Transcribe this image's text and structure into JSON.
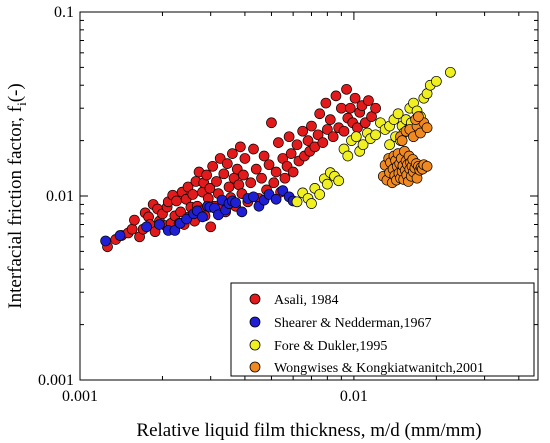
{
  "chart_data": {
    "type": "scatter",
    "xlabel": "Relative liquid film thickness, m/d (mm/mm)",
    "ylabel_main": "Interfacial friction factor, f",
    "ylabel_sub": "i",
    "ylabel_tail": "(-)",
    "x_scale": "log",
    "y_scale": "log",
    "xlim": [
      0.001,
      0.047
    ],
    "ylim": [
      0.001,
      0.1
    ],
    "x_ticks": [
      {
        "value": 0.001,
        "label": "0.001"
      },
      {
        "value": 0.01,
        "label": "0.01"
      }
    ],
    "y_ticks": [
      {
        "value": 0.001,
        "label": "0.001"
      },
      {
        "value": 0.01,
        "label": "0.01"
      },
      {
        "value": 0.1,
        "label": "0.1"
      }
    ],
    "grid": false,
    "legend_position": "bottom-right",
    "series": [
      {
        "name": "Asali, 1984",
        "color": "#e31a1c",
        "points": [
          [
            0.00126,
            0.0053
          ],
          [
            0.00135,
            0.0058
          ],
          [
            0.00142,
            0.0061
          ],
          [
            0.0015,
            0.0063
          ],
          [
            0.00155,
            0.0066
          ],
          [
            0.00158,
            0.0074
          ],
          [
            0.00165,
            0.006
          ],
          [
            0.0017,
            0.0066
          ],
          [
            0.00173,
            0.0081
          ],
          [
            0.00178,
            0.0077
          ],
          [
            0.0018,
            0.007
          ],
          [
            0.00185,
            0.009
          ],
          [
            0.00188,
            0.0064
          ],
          [
            0.00192,
            0.0085
          ],
          [
            0.00195,
            0.0073
          ],
          [
            0.002,
            0.008
          ],
          [
            0.00205,
            0.0069
          ],
          [
            0.00208,
            0.0087
          ],
          [
            0.0021,
            0.0093
          ],
          [
            0.00215,
            0.0071
          ],
          [
            0.00218,
            0.0101
          ],
          [
            0.00222,
            0.0078
          ],
          [
            0.00225,
            0.0094
          ],
          [
            0.0023,
            0.0071
          ],
          [
            0.00233,
            0.0082
          ],
          [
            0.00236,
            0.0105
          ],
          [
            0.0024,
            0.007
          ],
          [
            0.00244,
            0.0096
          ],
          [
            0.00248,
            0.0112
          ],
          [
            0.0025,
            0.0077
          ],
          [
            0.00254,
            0.0087
          ],
          [
            0.00258,
            0.0102
          ],
          [
            0.00262,
            0.0073
          ],
          [
            0.00265,
            0.012
          ],
          [
            0.00268,
            0.0088
          ],
          [
            0.00272,
            0.0135
          ],
          [
            0.00276,
            0.0083
          ],
          [
            0.0028,
            0.0105
          ],
          [
            0.00283,
            0.0118
          ],
          [
            0.00286,
            0.0078
          ],
          [
            0.0029,
            0.013
          ],
          [
            0.00294,
            0.0097
          ],
          [
            0.00298,
            0.011
          ],
          [
            0.003,
            0.0068
          ],
          [
            0.00305,
            0.0145
          ],
          [
            0.0031,
            0.0088
          ],
          [
            0.00315,
            0.012
          ],
          [
            0.0032,
            0.0103
          ],
          [
            0.00325,
            0.016
          ],
          [
            0.0033,
            0.009
          ],
          [
            0.00335,
            0.0132
          ],
          [
            0.0034,
            0.0082
          ],
          [
            0.00345,
            0.015
          ],
          [
            0.0035,
            0.0112
          ],
          [
            0.00355,
            0.0098
          ],
          [
            0.0036,
            0.017
          ],
          [
            0.00365,
            0.0125
          ],
          [
            0.0037,
            0.0088
          ],
          [
            0.00375,
            0.014
          ],
          [
            0.0038,
            0.0115
          ],
          [
            0.00385,
            0.0185
          ],
          [
            0.0039,
            0.0103
          ],
          [
            0.00395,
            0.013
          ],
          [
            0.004,
            0.016
          ],
          [
            0.0041,
            0.0093
          ],
          [
            0.0042,
            0.0118
          ],
          [
            0.0043,
            0.018
          ],
          [
            0.0044,
            0.014
          ],
          [
            0.0045,
            0.0097
          ],
          [
            0.0046,
            0.0125
          ],
          [
            0.0047,
            0.0165
          ],
          [
            0.0048,
            0.0108
          ],
          [
            0.0049,
            0.0148
          ],
          [
            0.005,
            0.025
          ],
          [
            0.0051,
            0.0118
          ],
          [
            0.0052,
            0.0135
          ],
          [
            0.0053,
            0.0195
          ],
          [
            0.0054,
            0.0105
          ],
          [
            0.0055,
            0.016
          ],
          [
            0.0056,
            0.0125
          ],
          [
            0.0057,
            0.0145
          ],
          [
            0.0058,
            0.021
          ],
          [
            0.0059,
            0.017
          ],
          [
            0.006,
            0.0135
          ],
          [
            0.0062,
            0.019
          ],
          [
            0.0063,
            0.0155
          ],
          [
            0.0065,
            0.0225
          ],
          [
            0.0066,
            0.0165
          ],
          [
            0.0068,
            0.02
          ],
          [
            0.0069,
            0.0175
          ],
          [
            0.007,
            0.024
          ],
          [
            0.0072,
            0.0185
          ],
          [
            0.0074,
            0.0215
          ],
          [
            0.0075,
            0.028
          ],
          [
            0.0077,
            0.0195
          ],
          [
            0.0079,
            0.032
          ],
          [
            0.008,
            0.023
          ],
          [
            0.0082,
            0.026
          ],
          [
            0.0084,
            0.021
          ],
          [
            0.0086,
            0.035
          ],
          [
            0.0088,
            0.0235
          ],
          [
            0.009,
            0.03
          ],
          [
            0.0092,
            0.0225
          ],
          [
            0.0094,
            0.038
          ],
          [
            0.0095,
            0.0265
          ],
          [
            0.0097,
            0.03
          ],
          [
            0.0099,
            0.025
          ],
          [
            0.0101,
            0.034
          ],
          [
            0.0103,
            0.0235
          ],
          [
            0.0105,
            0.0285
          ],
          [
            0.0107,
            0.031
          ],
          [
            0.011,
            0.025
          ],
          [
            0.0113,
            0.033
          ],
          [
            0.0116,
            0.027
          ],
          [
            0.012,
            0.03
          ]
        ]
      },
      {
        "name": "Shearer & Nedderman,1967",
        "color": "#1f1fd6",
        "points": [
          [
            0.00124,
            0.0057
          ],
          [
            0.0014,
            0.0061
          ],
          [
            0.00175,
            0.0068
          ],
          [
            0.00195,
            0.007
          ],
          [
            0.0021,
            0.0065
          ],
          [
            0.00222,
            0.0065
          ],
          [
            0.00232,
            0.0071
          ],
          [
            0.00245,
            0.0075
          ],
          [
            0.0026,
            0.008
          ],
          [
            0.00268,
            0.0083
          ],
          [
            0.0028,
            0.0077
          ],
          [
            0.00292,
            0.0088
          ],
          [
            0.00298,
            0.0087
          ],
          [
            0.0031,
            0.0086
          ],
          [
            0.0032,
            0.0079
          ],
          [
            0.0033,
            0.0095
          ],
          [
            0.0034,
            0.0084
          ],
          [
            0.0035,
            0.0091
          ],
          [
            0.0036,
            0.0094
          ],
          [
            0.0037,
            0.0092
          ],
          [
            0.0039,
            0.0082
          ],
          [
            0.0041,
            0.0097
          ],
          [
            0.0043,
            0.0099
          ],
          [
            0.0045,
            0.0088
          ],
          [
            0.0047,
            0.0095
          ],
          [
            0.0049,
            0.0102
          ],
          [
            0.0052,
            0.0096
          ],
          [
            0.0055,
            0.0107
          ],
          [
            0.0058,
            0.0099
          ],
          [
            0.006,
            0.0094
          ]
        ]
      },
      {
        "name": "Fore & Dukler,1995",
        "color": "#f0f020",
        "points": [
          [
            0.0062,
            0.0093
          ],
          [
            0.0065,
            0.0104
          ],
          [
            0.0068,
            0.0097
          ],
          [
            0.007,
            0.0091
          ],
          [
            0.0072,
            0.011
          ],
          [
            0.0075,
            0.0102
          ],
          [
            0.0078,
            0.0124
          ],
          [
            0.008,
            0.0116
          ],
          [
            0.0082,
            0.0134
          ],
          [
            0.0085,
            0.0128
          ],
          [
            0.0088,
            0.0121
          ],
          [
            0.0092,
            0.018
          ],
          [
            0.0095,
            0.0165
          ],
          [
            0.0098,
            0.02
          ],
          [
            0.0102,
            0.021
          ],
          [
            0.0105,
            0.0175
          ],
          [
            0.0108,
            0.019
          ],
          [
            0.0112,
            0.022
          ],
          [
            0.0115,
            0.0205
          ],
          [
            0.012,
            0.0215
          ],
          [
            0.0125,
            0.025
          ],
          [
            0.013,
            0.023
          ],
          [
            0.0135,
            0.024
          ],
          [
            0.014,
            0.026
          ],
          [
            0.0145,
            0.028
          ],
          [
            0.015,
            0.024
          ],
          [
            0.0155,
            0.026
          ],
          [
            0.016,
            0.03
          ],
          [
            0.0165,
            0.032
          ],
          [
            0.017,
            0.029
          ],
          [
            0.018,
            0.034
          ],
          [
            0.0185,
            0.036
          ],
          [
            0.019,
            0.04
          ],
          [
            0.02,
            0.042
          ],
          [
            0.0225,
            0.047
          ],
          [
            0.0135,
            0.019
          ],
          [
            0.0142,
            0.021
          ],
          [
            0.0148,
            0.02
          ],
          [
            0.0152,
            0.022
          ],
          [
            0.0158,
            0.023
          ],
          [
            0.0162,
            0.025
          ],
          [
            0.0175,
            0.027
          ]
        ]
      },
      {
        "name": "Wongwises & Kongkiatwanitch,2001",
        "color": "#f08a20",
        "points": [
          [
            0.0128,
            0.0128
          ],
          [
            0.013,
            0.0147
          ],
          [
            0.0132,
            0.0122
          ],
          [
            0.0134,
            0.016
          ],
          [
            0.0135,
            0.0134
          ],
          [
            0.0136,
            0.0152
          ],
          [
            0.0138,
            0.0118
          ],
          [
            0.0139,
            0.014
          ],
          [
            0.014,
            0.0165
          ],
          [
            0.0141,
            0.0129
          ],
          [
            0.0142,
            0.0156
          ],
          [
            0.0143,
            0.0122
          ],
          [
            0.0144,
            0.0145
          ],
          [
            0.0145,
            0.017
          ],
          [
            0.0146,
            0.0133
          ],
          [
            0.0147,
            0.015
          ],
          [
            0.0148,
            0.0125
          ],
          [
            0.0149,
            0.016
          ],
          [
            0.015,
            0.0136
          ],
          [
            0.0151,
            0.0146
          ],
          [
            0.0152,
            0.0123
          ],
          [
            0.0153,
            0.0175
          ],
          [
            0.0154,
            0.0138
          ],
          [
            0.0155,
            0.0155
          ],
          [
            0.0156,
            0.013
          ],
          [
            0.0157,
            0.0148
          ],
          [
            0.0158,
            0.012
          ],
          [
            0.0159,
            0.0165
          ],
          [
            0.016,
            0.014
          ],
          [
            0.0161,
            0.0152
          ],
          [
            0.0162,
            0.0128
          ],
          [
            0.0163,
            0.0145
          ],
          [
            0.0164,
            0.0158
          ],
          [
            0.0165,
            0.0135
          ],
          [
            0.0167,
            0.0142
          ],
          [
            0.0169,
            0.015
          ],
          [
            0.017,
            0.0125
          ],
          [
            0.0172,
            0.0145
          ],
          [
            0.0174,
            0.0138
          ],
          [
            0.0176,
            0.0143
          ],
          [
            0.0178,
            0.014
          ],
          [
            0.018,
            0.0148
          ],
          [
            0.0185,
            0.0145
          ],
          [
            0.0148,
            0.021
          ],
          [
            0.015,
            0.02
          ],
          [
            0.0155,
            0.0225
          ],
          [
            0.016,
            0.023
          ],
          [
            0.0165,
            0.021
          ],
          [
            0.017,
            0.024
          ],
          [
            0.0175,
            0.022
          ],
          [
            0.018,
            0.025
          ],
          [
            0.0185,
            0.0235
          ],
          [
            0.0168,
            0.026
          ],
          [
            0.0172,
            0.027
          ]
        ]
      }
    ]
  }
}
